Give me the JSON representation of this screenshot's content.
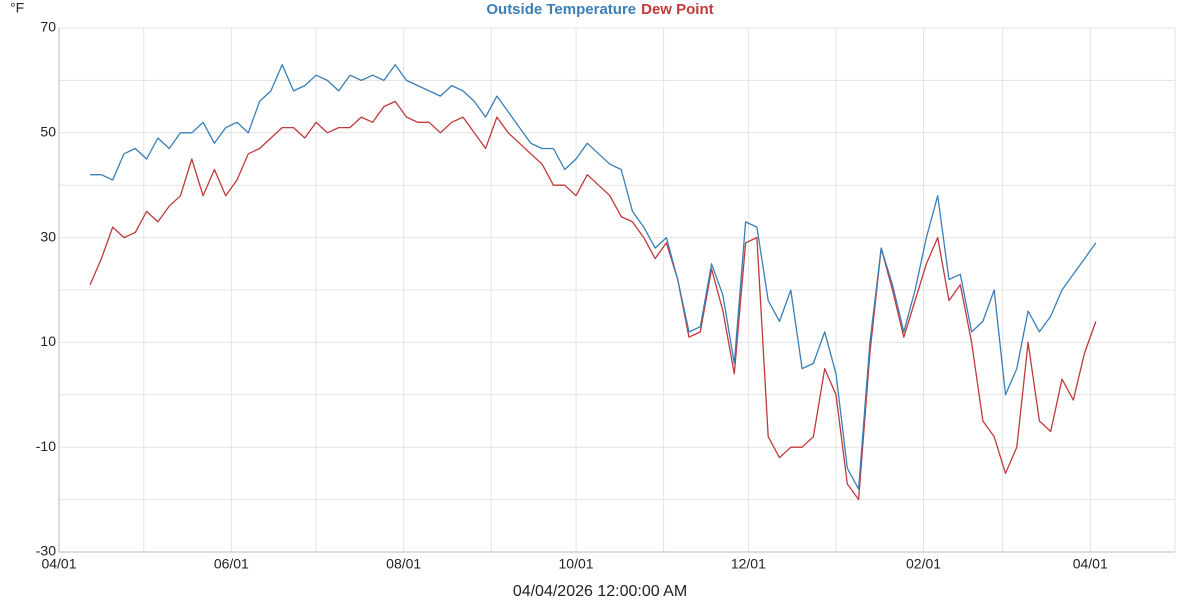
{
  "chart_data": {
    "type": "line",
    "y_unit": "°F",
    "xlabel": "04/04/2026 12:00:00 AM",
    "x": [
      "04/12",
      "04/16",
      "04/20",
      "04/24",
      "04/28",
      "05/02",
      "05/06",
      "05/10",
      "05/14",
      "05/18",
      "05/22",
      "05/26",
      "05/30",
      "06/03",
      "06/07",
      "06/11",
      "06/15",
      "06/19",
      "06/23",
      "06/27",
      "07/01",
      "07/05",
      "07/09",
      "07/13",
      "07/17",
      "07/21",
      "07/25",
      "07/29",
      "08/02",
      "08/06",
      "08/10",
      "08/14",
      "08/18",
      "08/22",
      "08/26",
      "08/30",
      "09/03",
      "09/07",
      "09/11",
      "09/15",
      "09/19",
      "09/23",
      "09/27",
      "10/01",
      "10/05",
      "10/09",
      "10/13",
      "10/17",
      "10/21",
      "10/25",
      "10/29",
      "11/02",
      "11/06",
      "11/10",
      "11/14",
      "11/18",
      "11/22",
      "11/26",
      "11/30",
      "12/04",
      "12/08",
      "12/12",
      "12/16",
      "12/20",
      "12/24",
      "12/28",
      "01/01",
      "01/05",
      "01/09",
      "01/13",
      "01/17",
      "01/21",
      "01/25",
      "01/29",
      "02/02",
      "02/06",
      "02/10",
      "02/14",
      "02/18",
      "02/22",
      "02/26",
      "03/02",
      "03/06",
      "03/10",
      "03/14",
      "03/18",
      "03/22",
      "03/26",
      "03/30",
      "04/03"
    ],
    "series": [
      {
        "name": "Outside Temperature",
        "color": "#3a7fb8",
        "values": [
          42,
          42,
          41,
          46,
          47,
          45,
          49,
          47,
          50,
          50,
          52,
          48,
          51,
          52,
          50,
          56,
          58,
          63,
          58,
          59,
          61,
          60,
          58,
          61,
          60,
          61,
          60,
          63,
          60,
          59,
          58,
          57,
          59,
          58,
          56,
          53,
          57,
          54,
          51,
          48,
          47,
          47,
          43,
          45,
          48,
          46,
          44,
          43,
          35,
          32,
          28,
          30,
          22,
          12,
          13,
          25,
          19,
          6,
          33,
          32,
          18,
          14,
          20,
          5,
          6,
          12,
          4,
          -14,
          -18,
          10,
          28,
          21,
          12,
          20,
          30,
          38,
          22,
          23,
          12,
          14,
          20,
          0,
          5,
          16,
          12,
          15,
          20,
          23,
          26,
          29
        ]
      },
      {
        "name": "Dew Point",
        "color": "#c0393b",
        "values": [
          21,
          26,
          32,
          30,
          31,
          35,
          33,
          36,
          38,
          45,
          38,
          43,
          38,
          41,
          46,
          47,
          49,
          51,
          51,
          49,
          52,
          50,
          51,
          51,
          53,
          52,
          55,
          56,
          53,
          52,
          52,
          50,
          52,
          53,
          50,
          47,
          53,
          50,
          48,
          46,
          44,
          40,
          40,
          38,
          42,
          40,
          38,
          34,
          33,
          30,
          26,
          29,
          22,
          11,
          12,
          24,
          16,
          4,
          29,
          30,
          -8,
          -12,
          -10,
          -10,
          -8,
          5,
          0,
          -17,
          -20,
          8,
          28,
          20,
          11,
          18,
          25,
          30,
          18,
          21,
          10,
          -5,
          -8,
          -15,
          -10,
          10,
          -5,
          -7,
          3,
          -1,
          8,
          14
        ]
      }
    ],
    "xlim": [
      "04/01",
      "05/01"
    ],
    "xticks": [
      "04/01",
      "06/01",
      "08/01",
      "10/01",
      "12/01",
      "02/01",
      "04/01"
    ],
    "x_minor_ticks": [
      "05/01",
      "07/01",
      "09/01",
      "11/01",
      "01/01",
      "03/01",
      "05/01"
    ],
    "ylim": [
      -30,
      70
    ],
    "yticks": [
      70,
      50,
      30,
      10,
      -10,
      -30
    ],
    "y_minor_ticks": [
      60,
      40,
      20,
      0,
      -20
    ],
    "grid": true
  }
}
